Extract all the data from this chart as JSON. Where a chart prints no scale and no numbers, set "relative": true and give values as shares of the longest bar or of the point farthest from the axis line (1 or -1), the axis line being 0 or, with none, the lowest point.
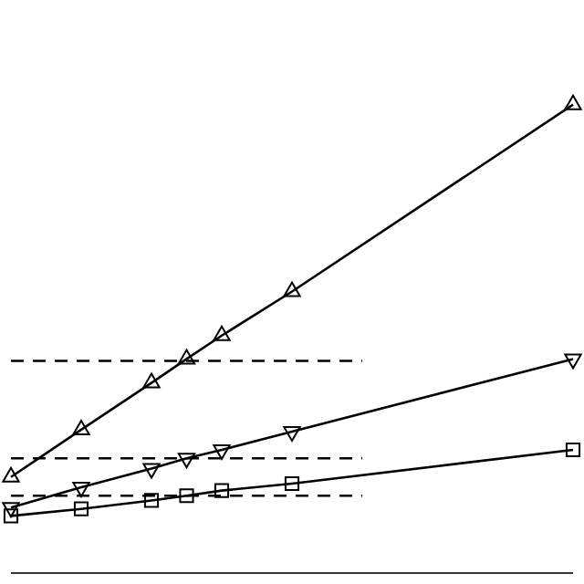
{
  "chart_data": {
    "type": "line",
    "relative": true,
    "legend": false,
    "categories": [
      null,
      null,
      null,
      null,
      null,
      null,
      null,
      null,
      null,
      null,
      null,
      null,
      null,
      null,
      null,
      null,
      null
    ],
    "series": [
      {
        "marker": "triangle",
        "line_style": "solid",
        "color": "#000000",
        "values": [
          0.205,
          null,
          0.306,
          null,
          0.406,
          0.457,
          0.507,
          null,
          0.601,
          null,
          null,
          null,
          null,
          null,
          null,
          null,
          1
        ]
      },
      {
        "marker": "triangle_down",
        "line_style": "solid",
        "color": "#000000",
        "values": [
          0.14,
          null,
          0.183,
          null,
          0.223,
          0.245,
          0.263,
          null,
          0.302,
          null,
          null,
          null,
          null,
          null,
          null,
          null,
          0.457
        ]
      },
      {
        "marker": "square",
        "line_style": "solid",
        "color": "#000000",
        "values": [
          0.122,
          null,
          0.137,
          null,
          0.155,
          0.165,
          0.176,
          null,
          0.191,
          null,
          null,
          null,
          null,
          null,
          null,
          null,
          0.263
        ]
      },
      {
        "marker": "none",
        "line_style": "dashed",
        "color": "#000000",
        "values": [
          0.453,
          null,
          null,
          null,
          null,
          null,
          null,
          null,
          null,
          null,
          0.453,
          null,
          null,
          null,
          null,
          null,
          null
        ]
      },
      {
        "marker": "none",
        "line_style": "dashed",
        "color": "#000000",
        "values": [
          0.245,
          null,
          null,
          null,
          null,
          null,
          null,
          null,
          null,
          null,
          0.245,
          null,
          null,
          null,
          null,
          null,
          null
        ]
      },
      {
        "marker": "none",
        "line_style": "dashed",
        "color": "#000000",
        "values": [
          0.165,
          null,
          null,
          null,
          null,
          null,
          null,
          null,
          null,
          null,
          0.165,
          null,
          null,
          null,
          null,
          null,
          null
        ]
      }
    ]
  }
}
